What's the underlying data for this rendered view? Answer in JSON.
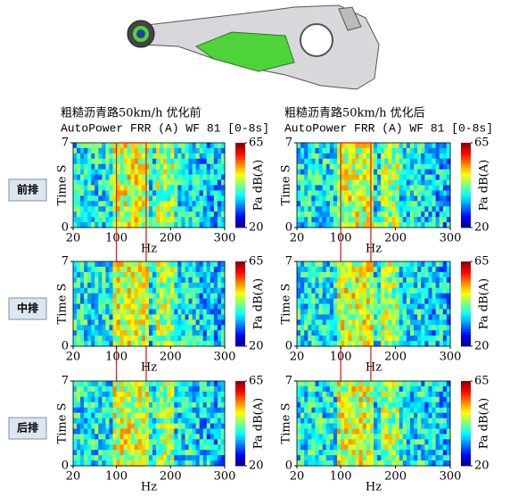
{
  "rows": [
    "前排",
    "中排",
    "后排"
  ],
  "chart_data": [
    {
      "type": "heatmap",
      "title": "粗糙沥青路50km/h 优化前",
      "subtitle": "AutoPower FRR (A) WF 81 [0-8s]",
      "x_label": "Hz",
      "y_label": "Time S",
      "colorbar_label": "Pa dB(A)",
      "xlim": [
        20,
        300
      ],
      "xticks": [
        20,
        100,
        200,
        300
      ],
      "ylim": [
        0,
        7
      ],
      "yticks": [
        0,
        7
      ],
      "zlim": [
        20,
        65
      ],
      "zticks": [
        20,
        65
      ],
      "highlight_xrange": [
        100,
        155
      ]
    },
    {
      "type": "heatmap",
      "title": "粗糙沥青路50km/h 优化后",
      "subtitle": "AutoPower FRR (A) WF 81 [0-8s]",
      "x_label": "Hz",
      "y_label": "Time S",
      "colorbar_label": "Pa dB(A)",
      "xlim": [
        20,
        300
      ],
      "xticks": [
        20,
        100,
        200,
        300
      ],
      "ylim": [
        0,
        7
      ],
      "yticks": [
        0,
        7
      ],
      "zlim": [
        20,
        65
      ],
      "zticks": [
        20,
        65
      ],
      "highlight_xrange": [
        100,
        155
      ]
    },
    {
      "type": "heatmap",
      "x_label": "Hz",
      "y_label": "Time S",
      "colorbar_label": "Pa dB(A)",
      "xlim": [
        20,
        300
      ],
      "xticks": [
        20,
        100,
        200,
        300
      ],
      "ylim": [
        0,
        7
      ],
      "yticks": [
        0,
        7
      ],
      "zlim": [
        20,
        65
      ],
      "zticks": [
        20,
        65
      ],
      "highlight_xrange": [
        100,
        155
      ]
    },
    {
      "type": "heatmap",
      "x_label": "Hz",
      "y_label": "Time S",
      "colorbar_label": "Pa dB(A)",
      "xlim": [
        20,
        300
      ],
      "xticks": [
        20,
        100,
        200,
        300
      ],
      "ylim": [
        0,
        7
      ],
      "yticks": [
        0,
        7
      ],
      "zlim": [
        20,
        65
      ],
      "zticks": [
        20,
        65
      ],
      "highlight_xrange": [
        100,
        155
      ]
    },
    {
      "type": "heatmap",
      "x_label": "Hz",
      "y_label": "Time S",
      "colorbar_label": "Pa dB(A)",
      "xlim": [
        20,
        300
      ],
      "xticks": [
        20,
        100,
        200,
        300
      ],
      "ylim": [
        0,
        7
      ],
      "yticks": [
        0,
        7
      ],
      "zlim": [
        20,
        65
      ],
      "zticks": [
        20,
        65
      ],
      "highlight_xrange": [
        100,
        155
      ]
    },
    {
      "type": "heatmap",
      "x_label": "Hz",
      "y_label": "Time S",
      "colorbar_label": "Pa dB(A)",
      "xlim": [
        20,
        300
      ],
      "xticks": [
        20,
        100,
        200,
        300
      ],
      "ylim": [
        0,
        7
      ],
      "yticks": [
        0,
        7
      ],
      "zlim": [
        20,
        65
      ],
      "zticks": [
        20,
        65
      ],
      "highlight_xrange": [
        100,
        155
      ]
    }
  ]
}
